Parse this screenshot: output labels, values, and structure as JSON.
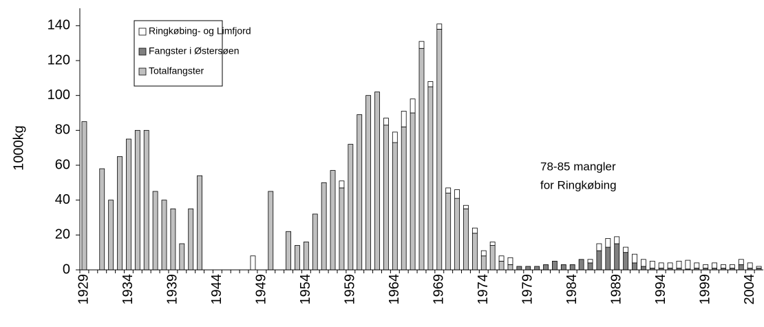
{
  "chart_data": {
    "type": "stacked_bar",
    "y_label": "1000kg",
    "annotation": [
      "78-85 mangler",
      "for Ringkøbing"
    ],
    "categories": [
      "1929",
      null,
      null,
      null,
      null,
      "1934",
      null,
      null,
      null,
      null,
      "1939",
      null,
      null,
      null,
      null,
      "1944",
      null,
      null,
      null,
      null,
      "1949",
      null,
      null,
      null,
      null,
      "1954",
      null,
      null,
      null,
      null,
      "1959",
      null,
      null,
      null,
      null,
      "1964",
      null,
      null,
      null,
      null,
      "1969",
      null,
      null,
      null,
      null,
      "1974",
      null,
      null,
      null,
      null,
      "1979",
      null,
      null,
      null,
      null,
      "1984",
      null,
      null,
      null,
      null,
      "1989",
      null,
      null,
      null,
      null,
      "1994",
      null,
      null,
      null,
      null,
      "1999",
      null,
      null,
      null,
      null,
      "2004",
      null
    ],
    "series": [
      {
        "name": "Ringkøbing- og Limfjord",
        "color": "#ffffff",
        "values": [
          null,
          null,
          null,
          null,
          null,
          null,
          null,
          null,
          null,
          null,
          null,
          null,
          null,
          null,
          null,
          null,
          null,
          null,
          null,
          8,
          null,
          null,
          null,
          null,
          null,
          null,
          null,
          null,
          null,
          4,
          null,
          null,
          null,
          null,
          4,
          6,
          9,
          8,
          4,
          3,
          3,
          3,
          5,
          2,
          3,
          3,
          2,
          3,
          4,
          null,
          null,
          null,
          null,
          null,
          null,
          null,
          null,
          2,
          4,
          5,
          4,
          3,
          5,
          4,
          4,
          3,
          3,
          4,
          5,
          3,
          2,
          3,
          2,
          2,
          3,
          3,
          1
        ]
      },
      {
        "name": "Fangster i Østersøen",
        "color": "#808080",
        "values": [
          null,
          null,
          null,
          null,
          null,
          null,
          null,
          null,
          null,
          null,
          null,
          null,
          null,
          null,
          null,
          null,
          null,
          null,
          null,
          null,
          null,
          null,
          null,
          null,
          null,
          null,
          null,
          null,
          null,
          null,
          null,
          null,
          null,
          null,
          null,
          null,
          null,
          null,
          null,
          null,
          null,
          null,
          null,
          null,
          null,
          null,
          null,
          null,
          null,
          2,
          2,
          2,
          3,
          5,
          3,
          3,
          6,
          4,
          11,
          13,
          15,
          10,
          4,
          2,
          1,
          1,
          1,
          1,
          0.5,
          1,
          1,
          1,
          1,
          1,
          3,
          1,
          1
        ]
      },
      {
        "name": "Totalfangster",
        "color": "#c0c0c0",
        "values": [
          85,
          null,
          58,
          40,
          65,
          75,
          80,
          80,
          45,
          40,
          35,
          15,
          35,
          54,
          null,
          null,
          null,
          null,
          null,
          null,
          null,
          45,
          null,
          22,
          14,
          16,
          32,
          50,
          57,
          47,
          72,
          89,
          100,
          102,
          83,
          73,
          82,
          90,
          127,
          105,
          138,
          44,
          41,
          35,
          21,
          8,
          14,
          5,
          3,
          null,
          null,
          null,
          null,
          null,
          null,
          null,
          null,
          null,
          null,
          null,
          null,
          null,
          null,
          null,
          null,
          null,
          null,
          null,
          null,
          null,
          null,
          null,
          null,
          null,
          null,
          null,
          null
        ]
      }
    ],
    "ylim": [
      0,
      150
    ],
    "yticks": [
      0,
      20,
      40,
      60,
      80,
      100,
      120,
      140
    ]
  }
}
